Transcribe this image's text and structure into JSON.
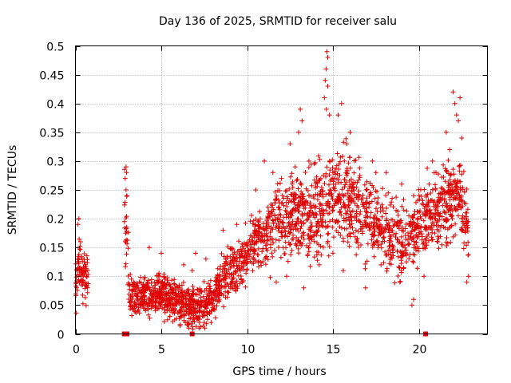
{
  "chart_data": {
    "type": "scatter",
    "title": "Day 136 of 2025, SRMTID for receiver salu",
    "xlabel": "GPS time / hours",
    "ylabel": "SRMTID / TECUs",
    "xlim": [
      0,
      24
    ],
    "ylim": [
      0,
      0.5
    ],
    "x_ticks": [
      0,
      5,
      10,
      15,
      20
    ],
    "x_tick_labels": [
      "0",
      "5",
      "10",
      "15",
      "20"
    ],
    "y_ticks": [
      0,
      0.05,
      0.1,
      0.15,
      0.2,
      0.25,
      0.3,
      0.35,
      0.4,
      0.45,
      0.5
    ],
    "y_tick_labels": [
      "0",
      "0.05",
      "0.1",
      "0.15",
      "0.2",
      "0.25",
      "0.3",
      "0.35",
      "0.4",
      "0.45",
      "0.5"
    ],
    "grid": true,
    "marker": "+",
    "color": "#e00000",
    "zero_markers_x": [
      2.85,
      2.9,
      3.0,
      6.8,
      20.4
    ],
    "series": [
      {
        "name": "SRMTID",
        "segments": [
          {
            "x0": 0.0,
            "x1": 0.75,
            "n": 90,
            "base": [
              [
                0,
                0.07
              ],
              [
                0.15,
                0.13
              ],
              [
                0.3,
                0.11
              ],
              [
                0.45,
                0.1
              ],
              [
                0.75,
                0.1
              ]
            ],
            "spread": 0.035,
            "seed": 11
          },
          {
            "x0": 2.85,
            "x1": 3.1,
            "n": 25,
            "base": [
              [
                2.85,
                0.22
              ],
              [
                3.0,
                0.16
              ],
              [
                3.1,
                0.12
              ]
            ],
            "spread": 0.07,
            "seed": 12
          },
          {
            "x0": 3.1,
            "x1": 7.0,
            "n": 520,
            "base": [
              [
                3.1,
                0.065
              ],
              [
                4.0,
                0.065
              ],
              [
                5.0,
                0.07
              ],
              [
                6.0,
                0.055
              ],
              [
                6.5,
                0.05
              ],
              [
                7.0,
                0.05
              ]
            ],
            "spread": 0.028,
            "seed": 13
          },
          {
            "x0": 7.0,
            "x1": 8.5,
            "n": 180,
            "base": [
              [
                7.0,
                0.05
              ],
              [
                7.7,
                0.05
              ],
              [
                8.5,
                0.09
              ]
            ],
            "spread": 0.03,
            "seed": 14
          },
          {
            "x0": 8.5,
            "x1": 11.0,
            "n": 260,
            "base": [
              [
                8.5,
                0.1
              ],
              [
                9.5,
                0.12
              ],
              [
                10.5,
                0.16
              ],
              [
                11.0,
                0.17
              ]
            ],
            "spread": 0.04,
            "seed": 15
          },
          {
            "x0": 11.0,
            "x1": 13.5,
            "n": 280,
            "base": [
              [
                11.0,
                0.17
              ],
              [
                12.0,
                0.2
              ],
              [
                13.0,
                0.21
              ],
              [
                13.5,
                0.2
              ]
            ],
            "spread": 0.06,
            "seed": 16
          },
          {
            "x0": 13.5,
            "x1": 17.0,
            "n": 420,
            "base": [
              [
                13.5,
                0.2
              ],
              [
                14.5,
                0.22
              ],
              [
                15.5,
                0.24
              ],
              [
                16.5,
                0.22
              ],
              [
                17.0,
                0.2
              ]
            ],
            "spread": 0.07,
            "seed": 17
          },
          {
            "x0": 17.0,
            "x1": 20.0,
            "n": 300,
            "base": [
              [
                17.0,
                0.2
              ],
              [
                18.0,
                0.18
              ],
              [
                19.0,
                0.16
              ],
              [
                20.0,
                0.18
              ]
            ],
            "spread": 0.05,
            "seed": 18
          },
          {
            "x0": 20.0,
            "x1": 22.9,
            "n": 340,
            "base": [
              [
                20.0,
                0.19
              ],
              [
                21.0,
                0.21
              ],
              [
                21.8,
                0.24
              ],
              [
                22.4,
                0.24
              ],
              [
                22.9,
                0.17
              ]
            ],
            "spread": 0.06,
            "seed": 19
          }
        ],
        "highlights": [
          [
            0.2,
            0.2
          ],
          [
            0.15,
            0.19
          ],
          [
            0.3,
            0.16
          ],
          [
            2.95,
            0.29
          ],
          [
            2.97,
            0.28
          ],
          [
            2.9,
            0.27
          ],
          [
            2.95,
            0.25
          ],
          [
            3.0,
            0.24
          ],
          [
            14.65,
            0.49
          ],
          [
            14.7,
            0.48
          ],
          [
            14.6,
            0.46
          ],
          [
            14.55,
            0.44
          ],
          [
            14.7,
            0.43
          ],
          [
            14.5,
            0.41
          ],
          [
            14.62,
            0.39
          ],
          [
            14.8,
            0.38
          ],
          [
            13.1,
            0.39
          ],
          [
            13.2,
            0.37
          ],
          [
            13.0,
            0.35
          ],
          [
            12.5,
            0.33
          ],
          [
            15.5,
            0.4
          ],
          [
            15.3,
            0.38
          ],
          [
            16.0,
            0.35
          ],
          [
            15.8,
            0.33
          ],
          [
            22.0,
            0.42
          ],
          [
            22.4,
            0.41
          ],
          [
            22.1,
            0.4
          ],
          [
            22.2,
            0.38
          ],
          [
            22.3,
            0.37
          ],
          [
            21.6,
            0.35
          ],
          [
            22.5,
            0.34
          ],
          [
            21.8,
            0.32
          ],
          [
            17.3,
            0.3
          ],
          [
            17.5,
            0.28
          ],
          [
            18.1,
            0.28
          ],
          [
            19.0,
            0.26
          ],
          [
            19.7,
            0.24
          ],
          [
            20.6,
            0.26
          ],
          [
            21.0,
            0.28
          ],
          [
            20.8,
            0.3
          ],
          [
            11.0,
            0.3
          ],
          [
            11.5,
            0.28
          ],
          [
            12.0,
            0.27
          ],
          [
            12.8,
            0.29
          ],
          [
            13.6,
            0.3
          ],
          [
            10.5,
            0.25
          ],
          [
            9.4,
            0.19
          ],
          [
            8.6,
            0.18
          ],
          [
            5.0,
            0.14
          ],
          [
            4.3,
            0.15
          ],
          [
            6.3,
            0.12
          ],
          [
            7.0,
            0.14
          ],
          [
            7.6,
            0.13
          ],
          [
            6.8,
            0.11
          ],
          [
            6.4,
            0.02
          ],
          [
            6.5,
            0.02
          ],
          [
            6.6,
            0.01
          ],
          [
            7.2,
            0.01
          ],
          [
            7.9,
            0.02
          ],
          [
            7.5,
            0.02
          ],
          [
            5.5,
            0.03
          ],
          [
            19.6,
            0.05
          ],
          [
            19.7,
            0.06
          ],
          [
            18.9,
            0.09
          ],
          [
            16.9,
            0.08
          ],
          [
            15.6,
            0.11
          ],
          [
            20.3,
            0.1
          ],
          [
            22.8,
            0.09
          ],
          [
            22.9,
            0.1
          ],
          [
            13.3,
            0.08
          ],
          [
            11.7,
            0.09
          ],
          [
            12.3,
            0.1
          ],
          [
            14.2,
            0.12
          ],
          [
            17.8,
            0.12
          ]
        ]
      }
    ]
  }
}
